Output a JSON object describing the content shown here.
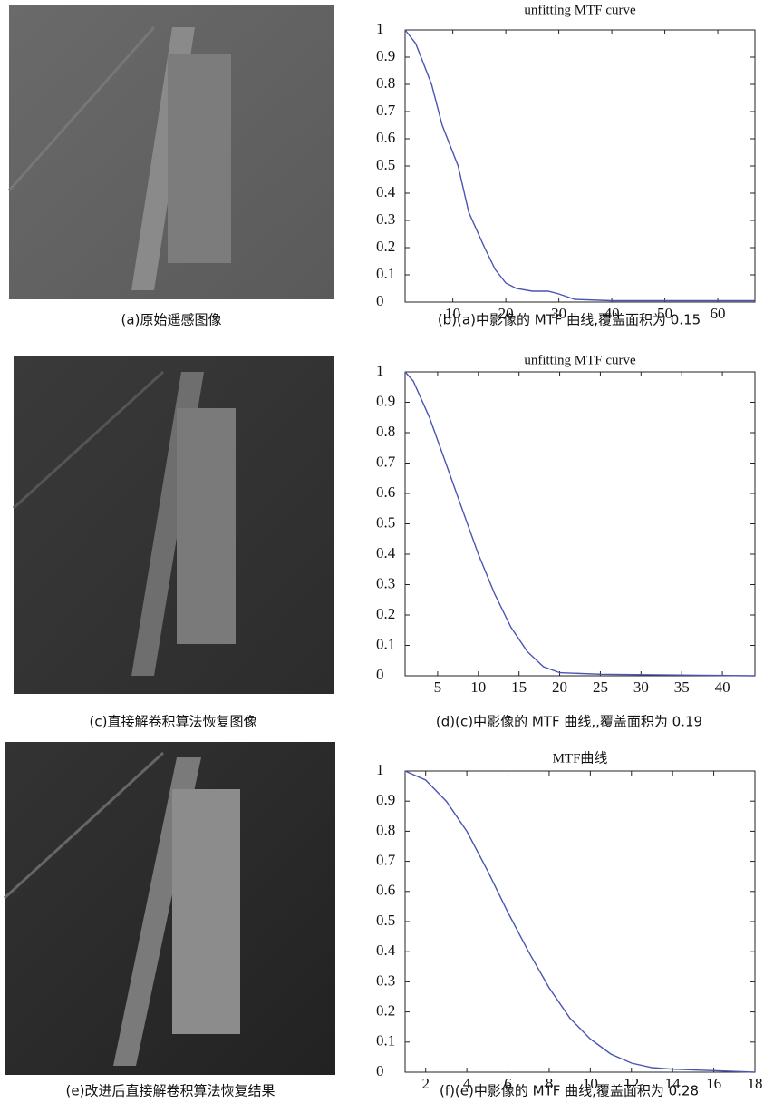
{
  "images": [
    {
      "caption": "(a)原始遥感图像"
    },
    {
      "caption": "(c)直接解卷积算法恢复图像"
    },
    {
      "caption": "(e)改进后直接解卷积算法恢复结果"
    }
  ],
  "chart_data": [
    {
      "type": "line",
      "title": "unfitting MTF curve",
      "caption": "(b)(a)中影像的 MTF 曲线,覆盖面积为 0.15",
      "x": [
        1,
        3,
        6,
        8,
        11,
        13,
        16,
        18,
        20,
        22,
        25,
        28,
        30,
        33,
        40,
        50,
        60,
        67
      ],
      "series": [
        {
          "color": "#4a55b0",
          "values": [
            1,
            0.95,
            0.8,
            0.65,
            0.5,
            0.33,
            0.2,
            0.12,
            0.07,
            0.05,
            0.04,
            0.04,
            0.03,
            0.01,
            0.005,
            0.005,
            0.005,
            0.005
          ]
        }
      ],
      "xlim": [
        1,
        67
      ],
      "xticks": [
        10,
        20,
        30,
        40,
        50,
        60
      ],
      "ylim": [
        0,
        1
      ],
      "yticks": [
        0,
        0.1,
        0.2,
        0.3,
        0.4,
        0.5,
        0.6,
        0.7,
        0.8,
        0.9,
        1
      ]
    },
    {
      "type": "line",
      "title": "unfitting MTF curve",
      "caption": "(d)(c)中影像的 MTF 曲线,,覆盖面积为 0.19",
      "x": [
        1,
        2,
        4,
        6,
        8,
        10,
        12,
        14,
        16,
        18,
        20,
        25,
        44
      ],
      "series": [
        {
          "color": "#4a55b0",
          "values": [
            1,
            0.97,
            0.85,
            0.7,
            0.55,
            0.4,
            0.27,
            0.16,
            0.08,
            0.03,
            0.01,
            0.005,
            0
          ]
        }
      ],
      "xlim": [
        1,
        44
      ],
      "xticks": [
        5,
        10,
        15,
        20,
        25,
        30,
        35,
        40
      ],
      "ylim": [
        0,
        1
      ],
      "yticks": [
        0,
        0.1,
        0.2,
        0.3,
        0.4,
        0.5,
        0.6,
        0.7,
        0.8,
        0.9,
        1
      ]
    },
    {
      "type": "line",
      "title": "MTF曲线",
      "caption": "(f)(e)中影像的 MTF 曲线,覆盖面积为 0.28",
      "x": [
        1,
        2,
        3,
        4,
        5,
        6,
        7,
        8,
        9,
        10,
        11,
        12,
        13,
        14,
        16,
        18
      ],
      "series": [
        {
          "color": "#4a55b0",
          "values": [
            1,
            0.97,
            0.9,
            0.8,
            0.67,
            0.53,
            0.4,
            0.28,
            0.18,
            0.11,
            0.06,
            0.03,
            0.015,
            0.01,
            0.005,
            0
          ]
        }
      ],
      "xlim": [
        1,
        18
      ],
      "xticks": [
        2,
        4,
        6,
        8,
        10,
        12,
        14,
        16,
        18
      ],
      "ylim": [
        0,
        1
      ],
      "yticks": [
        0,
        0.1,
        0.2,
        0.3,
        0.4,
        0.5,
        0.6,
        0.7,
        0.8,
        0.9,
        1
      ]
    }
  ]
}
